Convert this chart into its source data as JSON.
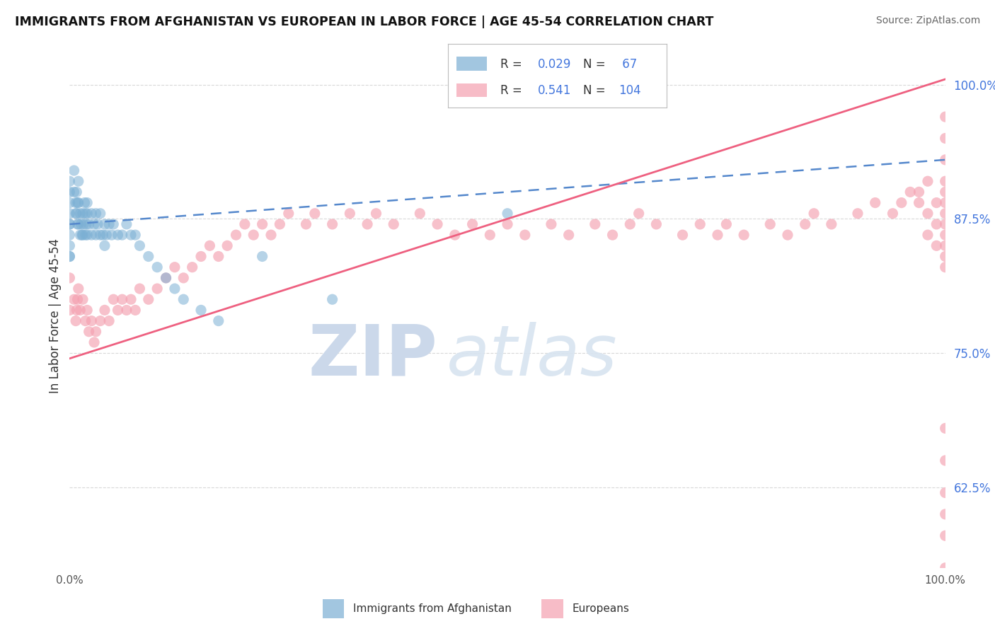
{
  "title": "IMMIGRANTS FROM AFGHANISTAN VS EUROPEAN IN LABOR FORCE | AGE 45-54 CORRELATION CHART",
  "source": "Source: ZipAtlas.com",
  "ylabel": "In Labor Force | Age 45-54",
  "xlim": [
    0.0,
    1.0
  ],
  "ylim": [
    0.55,
    1.02
  ],
  "afghanistan_R": 0.029,
  "afghanistan_N": 67,
  "european_R": 0.541,
  "european_N": 104,
  "afghanistan_color": "#7BAFD4",
  "european_color": "#F4A0B0",
  "afghanistan_line_color": "#5588CC",
  "european_line_color": "#EE6080",
  "legend_label_afghanistan": "Immigrants from Afghanistan",
  "legend_label_european": "Europeans",
  "watermark_zip": "ZIP",
  "watermark_atlas": "atlas",
  "watermark_color": "#CBD8EA",
  "background_color": "#ffffff",
  "ytick_positions": [
    0.625,
    0.75,
    0.875,
    1.0
  ],
  "ytick_labels": [
    "62.5%",
    "75.0%",
    "87.5%",
    "100.0%"
  ],
  "afghanistan_x": [
    0.0,
    0.0,
    0.0,
    0.0,
    0.0,
    0.0,
    0.0,
    0.0,
    0.0,
    0.0,
    0.005,
    0.005,
    0.007,
    0.007,
    0.008,
    0.008,
    0.009,
    0.009,
    0.01,
    0.01,
    0.01,
    0.012,
    0.012,
    0.013,
    0.014,
    0.015,
    0.015,
    0.016,
    0.017,
    0.018,
    0.018,
    0.019,
    0.02,
    0.02,
    0.02,
    0.022,
    0.025,
    0.025,
    0.028,
    0.03,
    0.03,
    0.032,
    0.035,
    0.035,
    0.038,
    0.04,
    0.04,
    0.042,
    0.045,
    0.048,
    0.05,
    0.055,
    0.06,
    0.065,
    0.07,
    0.075,
    0.08,
    0.09,
    0.1,
    0.11,
    0.12,
    0.13,
    0.15,
    0.17,
    0.22,
    0.3,
    0.5
  ],
  "afghanistan_y": [
    0.91,
    0.9,
    0.89,
    0.88,
    0.87,
    0.87,
    0.86,
    0.85,
    0.84,
    0.84,
    0.92,
    0.9,
    0.89,
    0.88,
    0.9,
    0.88,
    0.89,
    0.87,
    0.91,
    0.89,
    0.87,
    0.88,
    0.86,
    0.87,
    0.86,
    0.88,
    0.86,
    0.87,
    0.89,
    0.88,
    0.86,
    0.87,
    0.89,
    0.88,
    0.86,
    0.87,
    0.88,
    0.86,
    0.87,
    0.88,
    0.86,
    0.87,
    0.88,
    0.86,
    0.86,
    0.87,
    0.85,
    0.86,
    0.87,
    0.86,
    0.87,
    0.86,
    0.86,
    0.87,
    0.86,
    0.86,
    0.85,
    0.84,
    0.83,
    0.82,
    0.81,
    0.8,
    0.79,
    0.78,
    0.84,
    0.8,
    0.88
  ],
  "european_x": [
    0.0,
    0.0,
    0.005,
    0.007,
    0.008,
    0.009,
    0.01,
    0.012,
    0.015,
    0.018,
    0.02,
    0.022,
    0.025,
    0.028,
    0.03,
    0.035,
    0.04,
    0.045,
    0.05,
    0.055,
    0.06,
    0.065,
    0.07,
    0.075,
    0.08,
    0.09,
    0.1,
    0.11,
    0.12,
    0.13,
    0.14,
    0.15,
    0.16,
    0.17,
    0.18,
    0.19,
    0.2,
    0.21,
    0.22,
    0.23,
    0.24,
    0.25,
    0.27,
    0.28,
    0.3,
    0.32,
    0.34,
    0.35,
    0.37,
    0.4,
    0.42,
    0.44,
    0.46,
    0.48,
    0.5,
    0.52,
    0.55,
    0.57,
    0.6,
    0.62,
    0.64,
    0.65,
    0.67,
    0.7,
    0.72,
    0.74,
    0.75,
    0.77,
    0.8,
    0.82,
    0.84,
    0.85,
    0.87,
    0.9,
    0.92,
    0.94,
    0.95,
    0.96,
    0.97,
    0.97,
    0.98,
    0.98,
    0.98,
    0.99,
    0.99,
    0.99,
    1.0,
    1.0,
    1.0,
    1.0,
    1.0,
    1.0,
    1.0,
    1.0,
    1.0,
    1.0,
    1.0,
    1.0,
    1.0,
    1.0,
    1.0,
    1.0,
    1.0,
    1.0
  ],
  "european_y": [
    0.82,
    0.79,
    0.8,
    0.78,
    0.79,
    0.8,
    0.81,
    0.79,
    0.8,
    0.78,
    0.79,
    0.77,
    0.78,
    0.76,
    0.77,
    0.78,
    0.79,
    0.78,
    0.8,
    0.79,
    0.8,
    0.79,
    0.8,
    0.79,
    0.81,
    0.8,
    0.81,
    0.82,
    0.83,
    0.82,
    0.83,
    0.84,
    0.85,
    0.84,
    0.85,
    0.86,
    0.87,
    0.86,
    0.87,
    0.86,
    0.87,
    0.88,
    0.87,
    0.88,
    0.87,
    0.88,
    0.87,
    0.88,
    0.87,
    0.88,
    0.87,
    0.86,
    0.87,
    0.86,
    0.87,
    0.86,
    0.87,
    0.86,
    0.87,
    0.86,
    0.87,
    0.88,
    0.87,
    0.86,
    0.87,
    0.86,
    0.87,
    0.86,
    0.87,
    0.86,
    0.87,
    0.88,
    0.87,
    0.88,
    0.89,
    0.88,
    0.89,
    0.9,
    0.89,
    0.9,
    0.88,
    0.91,
    0.86,
    0.89,
    0.87,
    0.85,
    0.97,
    0.95,
    0.93,
    0.91,
    0.89,
    0.87,
    0.85,
    0.83,
    0.9,
    0.88,
    0.86,
    0.84,
    0.55,
    0.58,
    0.6,
    0.62,
    0.65,
    0.68
  ]
}
